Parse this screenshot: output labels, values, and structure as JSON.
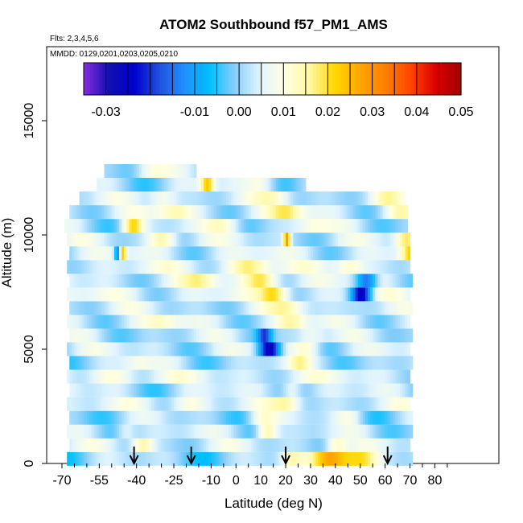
{
  "chart_data": {
    "type": "heatmap",
    "title": "ATOM2 Southbound f57_PM1_AMS",
    "subtitle": "Flts: 2,3,4,5,6",
    "annotation": "MMDD: 0129,0201,0203,0205,0210",
    "xlabel": "Latitude (deg N)",
    "ylabel": "Altitude (m)",
    "xlim": [
      -70,
      85
    ],
    "ylim": [
      0,
      18000
    ],
    "x_ticks": [
      -70,
      -55,
      -40,
      -25,
      -10,
      0,
      10,
      20,
      30,
      40,
      50,
      60,
      70,
      80
    ],
    "y_ticks": [
      0,
      5000,
      10000,
      15000
    ],
    "colorbar": {
      "range": [
        -0.035,
        0.05
      ],
      "tick_values": [
        -0.03,
        -0.01,
        0.0,
        0.01,
        0.02,
        0.03,
        0.04,
        0.05
      ],
      "tick_labels": [
        "-0.03",
        "-0.01",
        "0.00",
        "0.01",
        "0.02",
        "0.03",
        "0.04",
        "0.05"
      ],
      "colors": [
        "#8a2be2",
        "#1010b0",
        "#0000cd",
        "#2050e0",
        "#1e90ff",
        "#00bfff",
        "#87cefa",
        "#e0f4ff",
        "#ffffe0",
        "#fff8a0",
        "#ffd700",
        "#ffa500",
        "#ff7f00",
        "#ff4500",
        "#dc0000",
        "#a00000"
      ]
    },
    "arrows_latitude": [
      -41,
      -18,
      20,
      61
    ],
    "band_height_m": 600,
    "rows": [
      {
        "alt": 200,
        "x0": -68,
        "x1": 71,
        "base": 0.0,
        "bumps": [
          [
            38,
            0.032,
            6
          ],
          [
            50,
            0.018,
            5
          ],
          [
            22,
            0.01,
            3
          ]
        ]
      },
      {
        "alt": 800,
        "x0": -67,
        "x1": 70,
        "base": 0.003,
        "bumps": [
          [
            -38,
            0.014,
            3
          ],
          [
            40,
            0.012,
            3
          ]
        ]
      },
      {
        "alt": 1400,
        "x0": -68,
        "x1": 71,
        "base": 0.002,
        "bumps": [
          [
            12,
            0.016,
            3
          ],
          [
            -45,
            0.008,
            3
          ]
        ]
      },
      {
        "alt": 2000,
        "x0": -67,
        "x1": 71,
        "base": 0.001,
        "bumps": [
          [
            10,
            0.01,
            4
          ],
          [
            45,
            0.008,
            4
          ]
        ]
      },
      {
        "alt": 2600,
        "x0": -68,
        "x1": 70,
        "base": 0.004,
        "bumps": [
          [
            20,
            0.01,
            4
          ],
          [
            -20,
            0.008,
            5
          ]
        ]
      },
      {
        "alt": 3200,
        "x0": -67,
        "x1": 71,
        "base": 0.002,
        "bumps": [
          [
            22,
            0.01,
            3
          ]
        ]
      },
      {
        "alt": 3800,
        "x0": -68,
        "x1": 70,
        "base": 0.005,
        "bumps": [
          [
            -50,
            0.007,
            6
          ]
        ]
      },
      {
        "alt": 4400,
        "x0": -67,
        "x1": 71,
        "base": 0.002,
        "bumps": [
          [
            25,
            0.009,
            3
          ],
          [
            -40,
            0.006,
            4
          ]
        ]
      },
      {
        "alt": 5000,
        "x0": -68,
        "x1": 70,
        "base": 0.003,
        "bumps": [
          [
            13,
            -0.03,
            3
          ],
          [
            28,
            0.01,
            4
          ]
        ]
      },
      {
        "alt": 5600,
        "x0": -67,
        "x1": 71,
        "base": 0.002,
        "bumps": [
          [
            11,
            -0.018,
            2
          ],
          [
            30,
            0.008,
            4
          ]
        ]
      },
      {
        "alt": 6200,
        "x0": -68,
        "x1": 70,
        "base": 0.004,
        "bumps": [
          [
            22,
            0.009,
            4
          ],
          [
            -30,
            0.006,
            5
          ]
        ]
      },
      {
        "alt": 6800,
        "x0": -67,
        "x1": 71,
        "base": 0.003,
        "bumps": [
          [
            20,
            0.01,
            5
          ],
          [
            50,
            0.004,
            5
          ]
        ]
      },
      {
        "alt": 7400,
        "x0": -68,
        "x1": 70,
        "base": 0.005,
        "bumps": [
          [
            50,
            -0.03,
            3
          ],
          [
            15,
            0.016,
            4
          ]
        ]
      },
      {
        "alt": 8000,
        "x0": -67,
        "x1": 71,
        "base": 0.004,
        "bumps": [
          [
            52,
            -0.02,
            3
          ],
          [
            10,
            0.018,
            5
          ],
          [
            -15,
            0.01,
            5
          ]
        ]
      },
      {
        "alt": 8600,
        "x0": -68,
        "x1": 70,
        "base": 0.005,
        "bumps": [
          [
            5,
            0.014,
            6
          ],
          [
            45,
            0.01,
            4
          ]
        ]
      },
      {
        "alt": 9200,
        "x0": -67,
        "x1": 70,
        "base": 0.004,
        "bumps": [
          [
            -48,
            -0.02,
            1
          ],
          [
            -46,
            0.02,
            1
          ],
          [
            70,
            0.016,
            3
          ]
        ]
      },
      {
        "alt": 9800,
        "x0": -68,
        "x1": 70,
        "base": 0.003,
        "bumps": [
          [
            -30,
            0.014,
            4
          ],
          [
            20,
            0.026,
            1
          ],
          [
            68,
            0.015,
            3
          ]
        ]
      },
      {
        "alt": 10400,
        "x0": -69,
        "x1": 69,
        "base": 0.002,
        "bumps": [
          [
            -42,
            0.02,
            3
          ],
          [
            -5,
            0.01,
            5
          ],
          [
            30,
            0.008,
            5
          ]
        ]
      },
      {
        "alt": 11000,
        "x0": -67,
        "x1": 69,
        "base": 0.004,
        "bumps": [
          [
            -25,
            0.01,
            5
          ],
          [
            20,
            0.012,
            5
          ],
          [
            65,
            0.008,
            4
          ]
        ]
      },
      {
        "alt": 11600,
        "x0": -63,
        "x1": 68,
        "base": 0.003,
        "bumps": [
          [
            -30,
            0.01,
            4
          ],
          [
            15,
            0.008,
            5
          ],
          [
            60,
            0.007,
            4
          ]
        ]
      },
      {
        "alt": 12200,
        "x0": -56,
        "x1": 28,
        "base": 0.002,
        "bumps": [
          [
            -12,
            0.02,
            2
          ],
          [
            10,
            0.008,
            4
          ]
        ]
      },
      {
        "alt": 12800,
        "x0": -53,
        "x1": -16,
        "base": 0.002,
        "bumps": [
          [
            -35,
            0.006,
            4
          ]
        ]
      }
    ]
  }
}
